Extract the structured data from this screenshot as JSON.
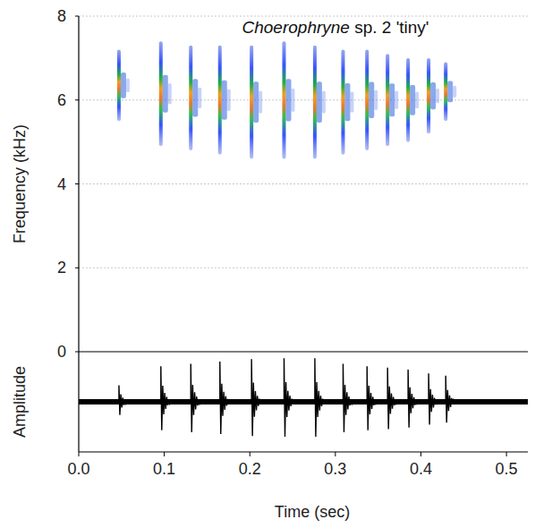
{
  "chart_data": {
    "type": "spectrogram",
    "title": "Choerophryne sp. 2 'tiny'",
    "x_label": "Time (sec)",
    "y_label": "Frequency (kHz)",
    "amplitude_label": "Amplitude",
    "xlim": [
      0,
      0.525
    ],
    "ylim": [
      0,
      8
    ],
    "amplitude_lim": [
      -1,
      1
    ],
    "xticks": [
      {
        "value": 0,
        "label": "0.0"
      },
      0.1,
      0.2,
      0.3,
      0.4,
      0.5
    ],
    "yticks": [
      0,
      2,
      4,
      6,
      8
    ],
    "grid": true,
    "pulses": [
      {
        "time": 0.047,
        "fmin": 5.5,
        "fmax": 7.2,
        "amplitude": 0.35
      },
      {
        "time": 0.096,
        "fmin": 4.9,
        "fmax": 7.4,
        "amplitude": 0.75
      },
      {
        "time": 0.131,
        "fmin": 4.8,
        "fmax": 7.3,
        "amplitude": 0.8
      },
      {
        "time": 0.165,
        "fmin": 4.7,
        "fmax": 7.3,
        "amplitude": 0.85
      },
      {
        "time": 0.202,
        "fmin": 4.6,
        "fmax": 7.3,
        "amplitude": 0.9
      },
      {
        "time": 0.24,
        "fmin": 4.6,
        "fmax": 7.4,
        "amplitude": 0.92
      },
      {
        "time": 0.276,
        "fmin": 4.6,
        "fmax": 7.3,
        "amplitude": 0.92
      },
      {
        "time": 0.309,
        "fmin": 4.7,
        "fmax": 7.2,
        "amplitude": 0.8
      },
      {
        "time": 0.337,
        "fmin": 4.8,
        "fmax": 7.2,
        "amplitude": 0.75
      },
      {
        "time": 0.361,
        "fmin": 4.9,
        "fmax": 7.1,
        "amplitude": 0.72
      },
      {
        "time": 0.385,
        "fmin": 5.0,
        "fmax": 7.0,
        "amplitude": 0.68
      },
      {
        "time": 0.409,
        "fmin": 5.2,
        "fmax": 7.0,
        "amplitude": 0.6
      },
      {
        "time": 0.429,
        "fmin": 5.5,
        "fmax": 6.9,
        "amplitude": 0.55
      }
    ]
  }
}
